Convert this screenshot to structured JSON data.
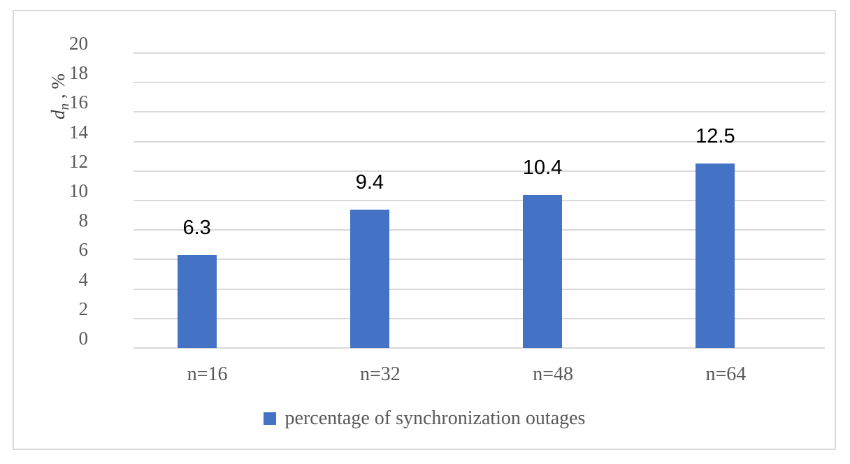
{
  "chart_data": {
    "type": "bar",
    "categories": [
      "n=16",
      "n=32",
      "n=48",
      "n=64"
    ],
    "values": [
      6.3,
      9.4,
      10.4,
      12.5
    ],
    "data_labels": [
      "6.3",
      "9.4",
      "10.4",
      "12.5"
    ],
    "series": [
      {
        "name": "percentage of synchronization outages",
        "values": [
          6.3,
          9.4,
          10.4,
          12.5
        ]
      }
    ],
    "title": "",
    "xlabel": "",
    "ylabel": "dn , %",
    "ylabel_parts": {
      "symbol": "d",
      "subscript": "n",
      "suffix": " , %"
    },
    "ylim": [
      0,
      20
    ],
    "ytick_step": 2,
    "yticks": [
      0,
      2,
      4,
      6,
      8,
      10,
      12,
      14,
      16,
      18,
      20
    ],
    "grid": "horizontal",
    "legend_position": "bottom",
    "legend_label": "percentage of synchronization outages",
    "colors": {
      "bar": "#4472C4",
      "gridline": "#D9D9D9",
      "figure_border": "#D9D9D9",
      "tick_text": "#595959",
      "axis_title_text": "#404040",
      "data_label_text": "#000000",
      "background": "#FFFFFF"
    }
  }
}
